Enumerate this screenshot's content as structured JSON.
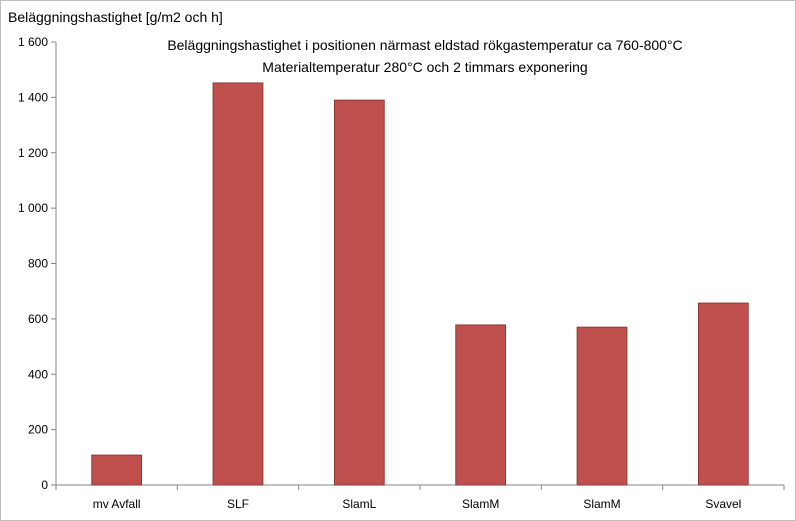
{
  "chart_data": {
    "type": "bar",
    "title": "Beläggningshastighet i positionen närmast eldstad rökgastemperatur ca  760-800°C",
    "subtitle": "Materialtemperatur 280°C och 2 timmars exponering",
    "ylabel": "Beläggningshastighet [g/m2 och h]",
    "xlabel": "",
    "ylim": [
      0,
      1600
    ],
    "yticks": [
      0,
      200,
      400,
      600,
      800,
      1000,
      1200,
      1400,
      1600
    ],
    "ytick_labels": [
      "0",
      "200",
      "400",
      "600",
      "800",
      "1 000",
      "1 200",
      "1 400",
      "1 600"
    ],
    "categories": [
      "mv Avfall",
      "SLF",
      "SlamL",
      "SlamM",
      "SlamM",
      "Svavel"
    ],
    "values": [
      108,
      1452,
      1390,
      578,
      570,
      657
    ],
    "grid": false,
    "legend": "none",
    "bar_color": "#c0504d",
    "bar_edge_color": "#8c3836"
  }
}
